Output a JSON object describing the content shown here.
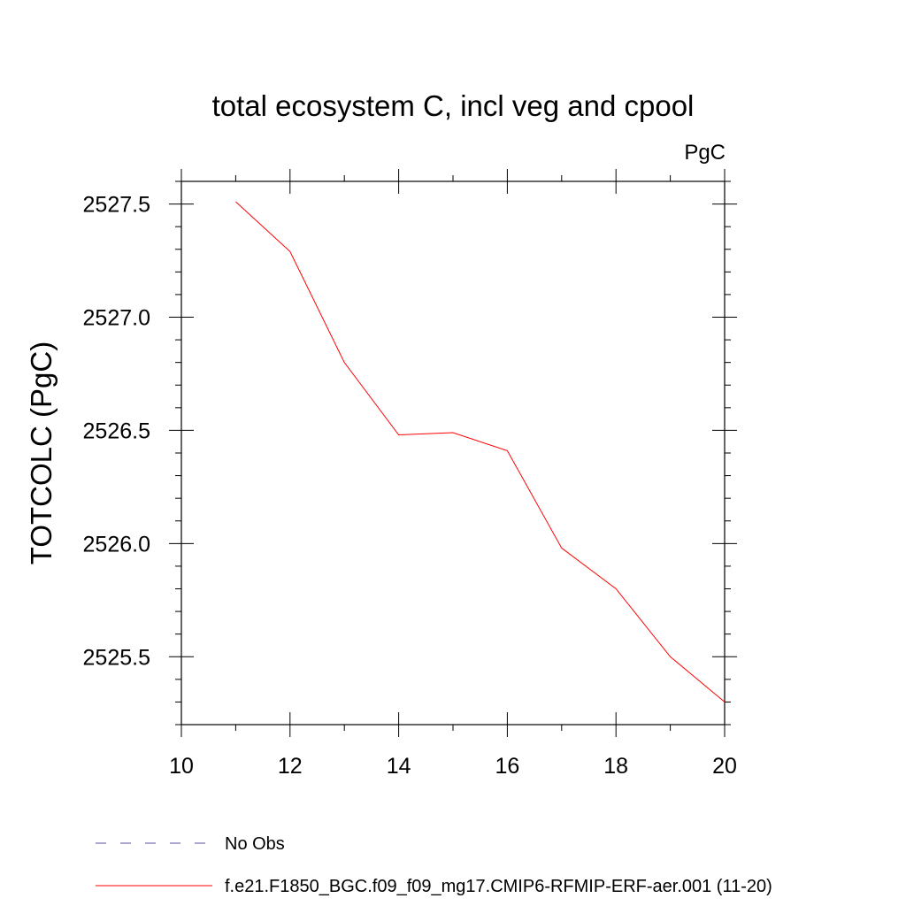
{
  "chart_data": {
    "type": "line",
    "title": "total ecosystem C, incl veg and cpool",
    "units": "PgC",
    "xlabel": "",
    "ylabel": "TOTCOLC  (PgC)",
    "xlim": [
      10,
      20
    ],
    "ylim": [
      2525.2,
      2527.6
    ],
    "x_ticks": [
      10,
      12,
      14,
      16,
      18,
      20
    ],
    "x_tick_labels": [
      "10",
      "12",
      "14",
      "16",
      "18",
      "20"
    ],
    "y_ticks": [
      2525.5,
      2526.0,
      2526.5,
      2527.0,
      2527.5
    ],
    "y_tick_labels": [
      "2525.5",
      "2526.0",
      "2526.5",
      "2527.0",
      "2527.5"
    ],
    "grid": false,
    "legend_position": "bottom",
    "series": [
      {
        "name": "No Obs",
        "color": "#5a4fa0",
        "dash": "dashed",
        "x": [],
        "y": []
      },
      {
        "name": "f.e21.F1850_BGC.f09_f09_mg17.CMIP6-RFMIP-ERF-aer.001 (11-20)",
        "color": "#ff0000",
        "dash": "solid",
        "x": [
          11,
          12,
          13,
          14,
          15,
          16,
          17,
          18,
          19,
          20
        ],
        "y": [
          2527.51,
          2527.29,
          2526.8,
          2526.48,
          2526.49,
          2526.41,
          2525.98,
          2525.8,
          2525.5,
          2525.3
        ]
      }
    ]
  }
}
